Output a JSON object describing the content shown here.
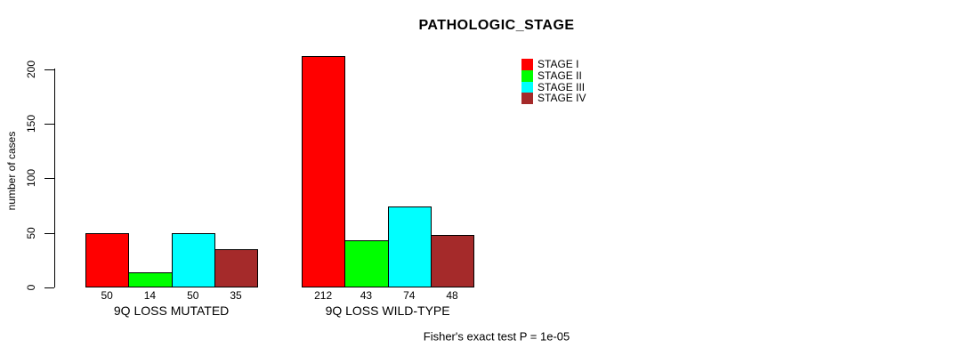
{
  "chart_data": {
    "type": "bar",
    "title": "PATHOLOGIC_STAGE",
    "ylabel": "number of cases",
    "xlabel": "",
    "ylim": [
      0,
      200
    ],
    "yticks": [
      0,
      50,
      100,
      150,
      200
    ],
    "grid": false,
    "legend_position": "top-right",
    "categories": [
      "9Q LOSS MUTATED",
      "9Q LOSS WILD-TYPE"
    ],
    "series": [
      {
        "name": "STAGE I",
        "color": "#ff0000",
        "values": [
          50,
          212
        ]
      },
      {
        "name": "STAGE II",
        "color": "#00ff00",
        "values": [
          14,
          43
        ]
      },
      {
        "name": "STAGE III",
        "color": "#00ffff",
        "values": [
          50,
          74
        ]
      },
      {
        "name": "STAGE IV",
        "color": "#a52a2a",
        "values": [
          35,
          48
        ]
      }
    ],
    "bar_value_labels": {
      "9Q LOSS MUTATED": [
        50,
        14,
        50,
        35
      ],
      "9Q LOSS WILD-TYPE": [
        212,
        43,
        74,
        48
      ]
    },
    "annotation": "Fisher's exact test P = 1e-05"
  }
}
